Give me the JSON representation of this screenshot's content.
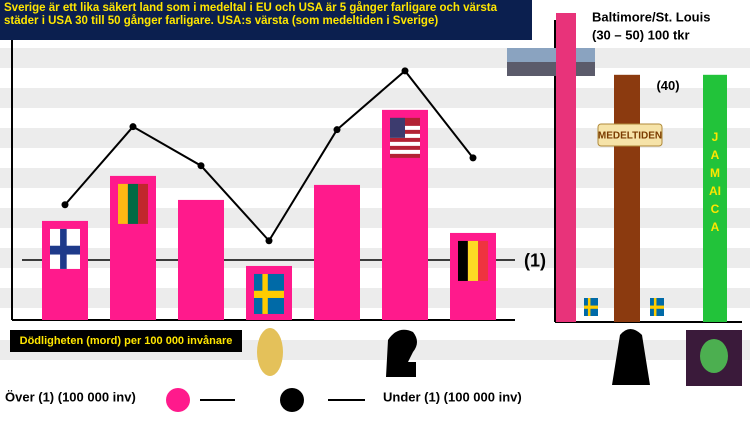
{
  "chart_data": [
    {
      "type": "bar",
      "title": "Sverige är ett lika säkert land som i medeltal i EU och USA är 5 gånger farligare och värsta städer i USA 30 till 50 gånger farligare. USA:s värsta (som medeltiden i Sverige)",
      "x_label": "Dödligheten (mord) per 100 000 invånare",
      "ylim": [
        0,
        5.33
      ],
      "reference_line": {
        "value": 1,
        "label": "(1)"
      },
      "series": [
        {
          "name": "Över (1) (100 000 inv)",
          "type": "bar",
          "color": "#ff1a8c",
          "values": [
            1.65,
            2.4,
            2.0,
            0.9,
            2.25,
            3.5,
            1.45
          ]
        },
        {
          "name": "Under (1) (100 000 inv)",
          "type": "line",
          "color": "#000000",
          "values": [
            1.92,
            3.22,
            2.57,
            1.32,
            3.17,
            4.15,
            2.7
          ]
        }
      ]
    },
    {
      "type": "bar",
      "categories": [
        "Baltimore/St. Louis",
        "MEDELTIDEN",
        "JAMAICA"
      ],
      "values": [
        50,
        40,
        40
      ],
      "value_labels": [
        null,
        "(40)",
        null
      ],
      "colors": [
        "#e8337a",
        "#8b3a0f",
        "#22c33a"
      ],
      "annotation": "(30 – 50) 100 tkr",
      "ylim": [
        0,
        50
      ]
    }
  ]
}
